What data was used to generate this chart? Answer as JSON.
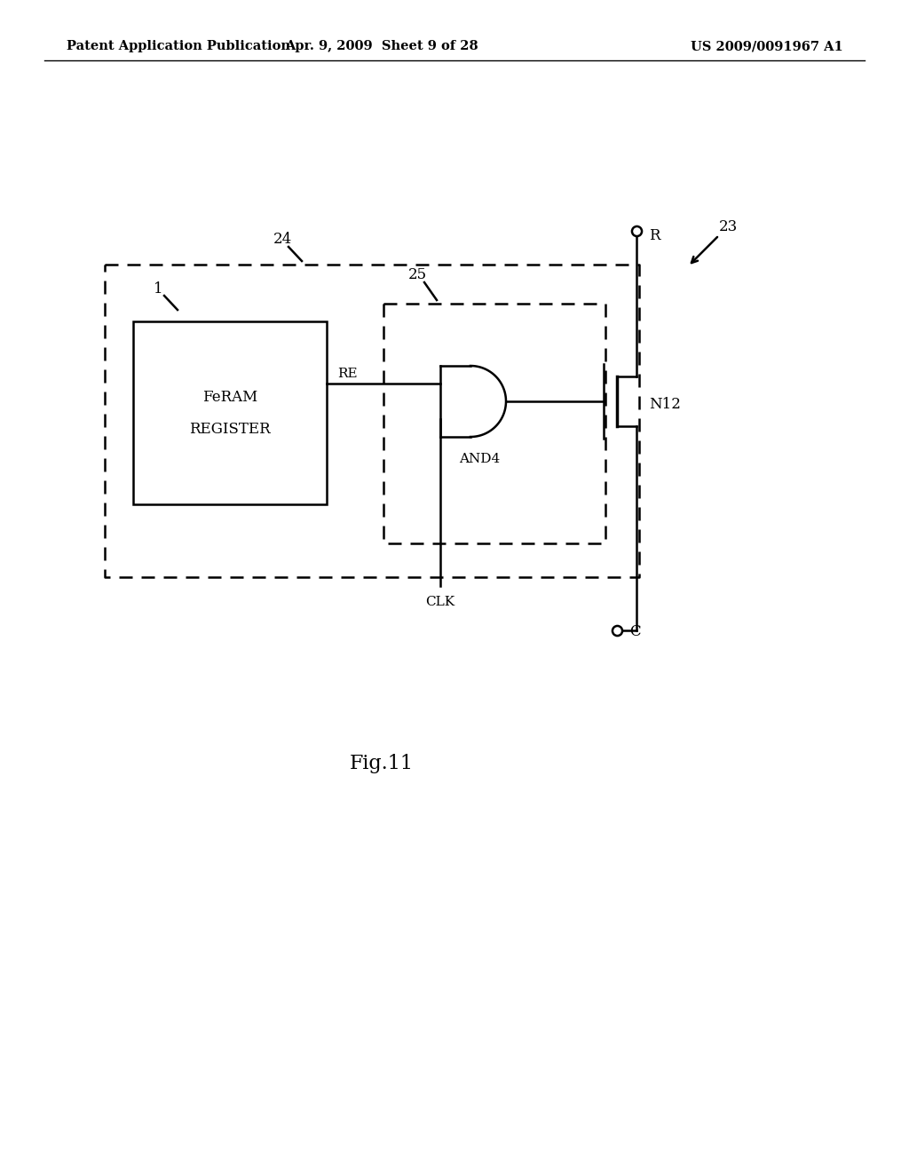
{
  "bg_color": "#ffffff",
  "header_left": "Patent Application Publication",
  "header_mid": "Apr. 9, 2009  Sheet 9 of 28",
  "header_right": "US 2009/0091967 A1",
  "fig_label": "Fig.11",
  "label_23": "23",
  "label_24": "24",
  "label_25": "25",
  "label_1": "1",
  "label_N12": "N12",
  "label_R": "R",
  "label_C": "C",
  "label_RE": "RE",
  "label_CLK": "CLK",
  "label_AND4": "AND4",
  "feram_text_line1": "FeRAM",
  "feram_text_line2": "REGISTER"
}
